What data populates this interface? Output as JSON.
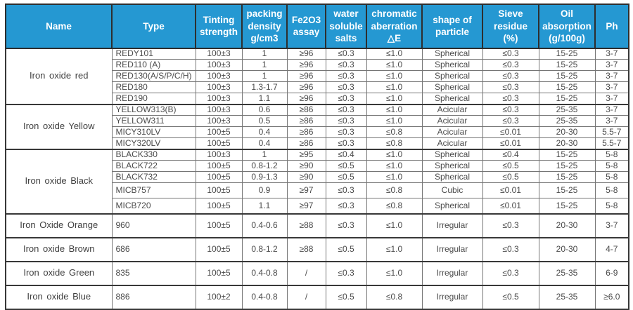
{
  "colors": {
    "header_bg": "#2598d2",
    "header_text": "#ffffff",
    "border_dark": "#383838",
    "border_light": "#757575",
    "body_text": "#4a4a4a"
  },
  "table": {
    "columns": [
      {
        "id": "name",
        "label": "Name"
      },
      {
        "id": "type",
        "label": "Type"
      },
      {
        "id": "tinting",
        "label": "Tinting\nstrength"
      },
      {
        "id": "density",
        "label": "packing\ndensity\ng/cm3"
      },
      {
        "id": "fe2o3",
        "label": "Fe2O3\nassay"
      },
      {
        "id": "salts",
        "label": "water\nsoluble\nsalts"
      },
      {
        "id": "chromatic",
        "label": "chromatic\naberration\n△E"
      },
      {
        "id": "shape",
        "label": "shape of\nparticle"
      },
      {
        "id": "sieve",
        "label": "Sieve\nresidue\n(%)"
      },
      {
        "id": "oil",
        "label": "Oil\nabsorption\n(g/100g)"
      },
      {
        "id": "ph",
        "label": "Ph"
      }
    ],
    "groups": [
      {
        "name": "Iron oxide red",
        "rows": [
          [
            "REDY101",
            "100±3",
            "1",
            "≥96",
            "≤0.3",
            "≤1.0",
            "Spherical",
            "≤0.3",
            "15-25",
            "3-7"
          ],
          [
            "RED110 (A)",
            "100±3",
            "1",
            "≥96",
            "≤0.3",
            "≤1.0",
            "Spherical",
            "≤0.3",
            "15-25",
            "3-7"
          ],
          [
            "RED130(A/S/P/C/H)",
            "100±3",
            "1",
            "≥96",
            "≤0.3",
            "≤1.0",
            "Spherical",
            "≤0.3",
            "15-25",
            "3-7"
          ],
          [
            "RED180",
            "100±3",
            "1.3-1.7",
            "≥96",
            "≤0.3",
            "≤1.0",
            "Spherical",
            "≤0.3",
            "15-25",
            "3-7"
          ],
          [
            "RED190",
            "100±3",
            "1.1",
            "≥96",
            "≤0.3",
            "≤1.0",
            "Spherical",
            "≤0.3",
            "15-25",
            "3-7"
          ]
        ]
      },
      {
        "name": "Iron oxide Yellow",
        "rows": [
          [
            "YELLOW313(B)",
            "100±3",
            "0.6",
            "≥86",
            "≤0.3",
            "≤1.0",
            "Acicular",
            "≤0.3",
            "25-35",
            "3-7"
          ],
          [
            "YELLOW311",
            "100±3",
            "0.5",
            "≥86",
            "≤0.3",
            "≤1.0",
            "Acicular",
            "≤0.3",
            "25-35",
            "3-7"
          ],
          [
            "MICY310LV",
            "100±5",
            "0.4",
            "≥86",
            "≤0.3",
            "≤0.8",
            "Acicular",
            "≤0.01",
            "20-30",
            "5.5-7"
          ],
          [
            "MICY320LV",
            "100±5",
            "0.4",
            "≥86",
            "≤0.3",
            "≤0.8",
            "Acicular",
            "≤0.01",
            "20-30",
            "5.5-7"
          ]
        ]
      },
      {
        "name": "Iron oxide Black",
        "rows": [
          [
            "BLACK330",
            "100±3",
            "1",
            "≥95",
            "≤0.4",
            "≤1.0",
            "Spherical",
            "≤0.4",
            "15-25",
            "5-8"
          ],
          [
            "BLACK722",
            "100±5",
            "0.8-1.2",
            "≥90",
            "≤0.5",
            "≤1.0",
            "Spherical",
            "≤0.5",
            "15-25",
            "5-8"
          ],
          [
            "BLACK732",
            "100±5",
            "0.9-1.3",
            "≥90",
            "≤0.5",
            "≤1.0",
            "Spherical",
            "≤0.5",
            "15-25",
            "5-8"
          ],
          [
            "MICB757",
            "100±5",
            "0.9",
            "≥97",
            "≤0.3",
            "≤0.8",
            "Cubic",
            "≤0.01",
            "15-25",
            "5-8"
          ],
          [
            "MICB720",
            "100±5",
            "1.1",
            "≥97",
            "≤0.3",
            "≤0.8",
            "Spherical",
            "≤0.01",
            "15-25",
            "5-8"
          ]
        ]
      },
      {
        "name": "Iron Oxide Orange",
        "rows": [
          [
            "960",
            "100±5",
            "0.4-0.6",
            "≥88",
            "≤0.3",
            "≤1.0",
            "Irregular",
            "≤0.3",
            "20-30",
            "3-7"
          ]
        ]
      },
      {
        "name": "Iron oxide Brown",
        "rows": [
          [
            "686",
            "100±5",
            "0.8-1.2",
            "≥88",
            "≤0.5",
            "≤1.0",
            "Irregular",
            "≤0.3",
            "20-30",
            "4-7"
          ]
        ]
      },
      {
        "name": "Iron oxide Green",
        "rows": [
          [
            "835",
            "100±5",
            "0.4-0.8",
            "/",
            "≤0.3",
            "≤1.0",
            "Irregular",
            "≤0.3",
            "25-35",
            "6-9"
          ]
        ]
      },
      {
        "name": "Iron oxide Blue",
        "rows": [
          [
            "886",
            "100±2",
            "0.4-0.8",
            "/",
            "≤0.5",
            "≤0.8",
            "Irregular",
            "≤0.5",
            "25-35",
            "≥6.0"
          ]
        ]
      }
    ]
  }
}
